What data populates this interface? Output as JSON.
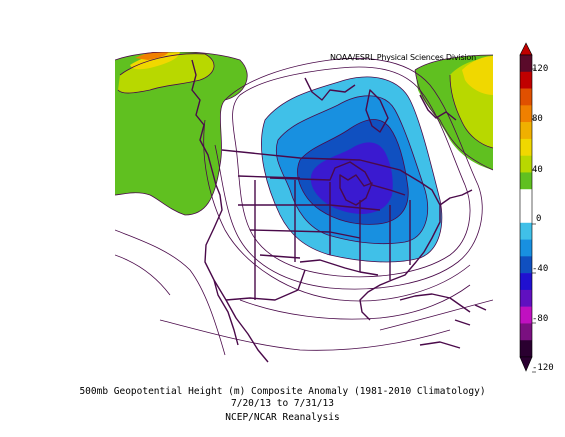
{
  "map": {
    "credit": "NOAA/ESRL Physical Sciences Division",
    "captions": {
      "line1": "500mb Geopotential Height (m) Composite Anomaly (1981-2010 Climatology)",
      "line2": "7/20/13  to 7/31/13",
      "line3": "NCEP/NCAR Reanalysis"
    },
    "colorbar": {
      "ticks": [
        "120",
        "80",
        "40",
        "0",
        "-40",
        "-80",
        "-120"
      ],
      "colors": [
        "#5a0a2a",
        "#c00000",
        "#e05000",
        "#f08000",
        "#f0b000",
        "#f0d800",
        "#b8d800",
        "#60c020",
        "#ffffff",
        "#ffffff",
        "#40c0e8",
        "#1890e0",
        "#1050c0",
        "#2010d0",
        "#6010c0",
        "#c010c0",
        "#7a1080",
        "#2a0030"
      ]
    },
    "fill_colors": {
      "neg_40": "#40c0e8",
      "neg_60": "#1890e0",
      "neg_80": "#1050c0",
      "neg_100": "#3a1ad0",
      "pos_40": "#60c020",
      "pos_60": "#b8d800",
      "pos_80": "#f0d800",
      "pos_100": "#f08000",
      "pos_120": "#e05000",
      "outline": "#4a0a4a"
    }
  }
}
